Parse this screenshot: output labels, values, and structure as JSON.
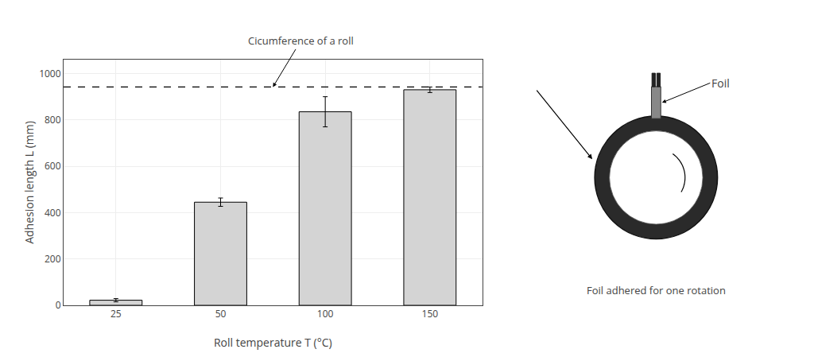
{
  "chart_data": {
    "type": "bar",
    "categories": [
      "25",
      "50",
      "100",
      "150"
    ],
    "values": [
      22,
      445,
      835,
      930
    ],
    "errors": [
      7,
      18,
      65,
      12
    ],
    "color": "#d4d4d4",
    "xlabel": "Roll temperature T (°C)",
    "ylabel": "Adhesion length L (mm)",
    "ylim": [
      0,
      1060
    ],
    "yticks": [
      0,
      200,
      400,
      600,
      800,
      1000
    ],
    "grid": true,
    "reference_line": {
      "y": 942,
      "label": "Cicumference of a roll",
      "line_style": "dashed"
    },
    "annotations": [
      "Foil",
      "Foil adhered for one rotation"
    ]
  }
}
